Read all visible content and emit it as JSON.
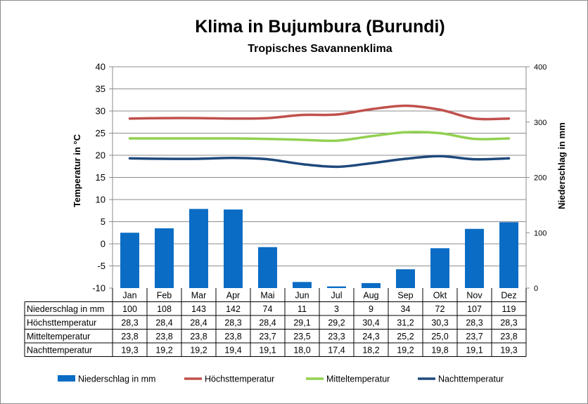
{
  "title": "Klima in Bujumbura (Burundi)",
  "subtitle": "Tropisches Savannenklima",
  "chart_data": {
    "type": "bar",
    "categories": [
      "Jan",
      "Feb",
      "Mar",
      "Apr",
      "Mai",
      "Jun",
      "Jul",
      "Aug",
      "Sep",
      "Okt",
      "Nov",
      "Dez"
    ],
    "y_left": {
      "label": "Temperatur in °C",
      "range": [
        -10,
        40
      ],
      "ticks": [
        -10,
        -5,
        0,
        5,
        10,
        15,
        20,
        25,
        30,
        35,
        40
      ]
    },
    "y_right": {
      "label": "Niederschlag in mm",
      "range": [
        0,
        400
      ],
      "ticks": [
        0,
        100,
        200,
        300,
        400
      ]
    },
    "grid": true,
    "legend_position": "bottom",
    "series": [
      {
        "name": "Niederschlag in mm",
        "type": "bar",
        "axis": "right",
        "color": "#0a6cc4",
        "values": [
          100,
          108,
          143,
          142,
          74,
          11,
          3,
          9,
          34,
          72,
          107,
          119
        ],
        "labels": [
          "100",
          "108",
          "143",
          "142",
          "74",
          "11",
          "3",
          "9",
          "34",
          "72",
          "107",
          "119"
        ]
      },
      {
        "name": "Höchsttemperatur",
        "type": "line",
        "axis": "left",
        "color": "#c0504d",
        "values": [
          28.3,
          28.4,
          28.4,
          28.3,
          28.4,
          29.1,
          29.2,
          30.4,
          31.2,
          30.3,
          28.3,
          28.3
        ],
        "labels": [
          "28,3",
          "28,4",
          "28,4",
          "28,3",
          "28,4",
          "29,1",
          "29,2",
          "30,4",
          "31,2",
          "30,3",
          "28,3",
          "28,3"
        ]
      },
      {
        "name": "Mitteltemperatur",
        "type": "line",
        "axis": "left",
        "color": "#92d050",
        "values": [
          23.8,
          23.8,
          23.8,
          23.8,
          23.7,
          23.5,
          23.3,
          24.3,
          25.2,
          25.0,
          23.7,
          23.8
        ],
        "labels": [
          "23,8",
          "23,8",
          "23,8",
          "23,8",
          "23,7",
          "23,5",
          "23,3",
          "24,3",
          "25,2",
          "25,0",
          "23,7",
          "23,8"
        ]
      },
      {
        "name": "Nachttemperatur",
        "type": "line",
        "axis": "left",
        "color": "#1f497d",
        "values": [
          19.3,
          19.2,
          19.2,
          19.4,
          19.1,
          18.0,
          17.4,
          18.2,
          19.2,
          19.8,
          19.1,
          19.3
        ],
        "labels": [
          "19,3",
          "19,2",
          "19,2",
          "19,4",
          "19,1",
          "18,0",
          "17,4",
          "18,2",
          "19,2",
          "19,8",
          "19,1",
          "19,3"
        ]
      }
    ]
  }
}
